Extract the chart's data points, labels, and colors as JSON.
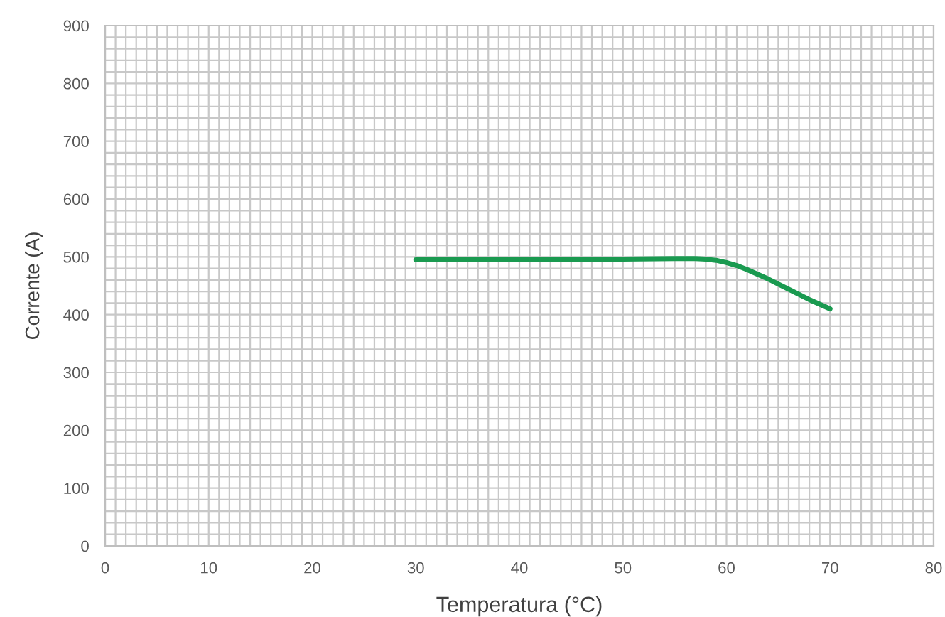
{
  "chart_data": {
    "type": "line",
    "xlabel": "Temperatura (°C)",
    "ylabel": "Corrente (A)",
    "x": [
      30,
      35,
      40,
      45,
      50,
      55,
      57,
      58,
      59,
      60,
      61,
      62,
      63,
      64,
      65,
      66,
      67,
      68,
      69,
      70
    ],
    "series": [
      {
        "color": "#1a9a50",
        "values": [
          495,
          495,
          495,
          495,
          496,
          497,
          497,
          496,
          494,
          490,
          485,
          478,
          470,
          462,
          453,
          444,
          435,
          426,
          418,
          410
        ]
      }
    ],
    "xlim": [
      0,
      80
    ],
    "ylim": [
      0,
      900
    ],
    "xticks": [
      0,
      {
        "value": 1,
        "label": null
      },
      {
        "value": 2,
        "label": null
      },
      {
        "value": 3,
        "label": null
      },
      {
        "value": 4,
        "label": null
      },
      {
        "value": 5,
        "label": null
      },
      {
        "value": 6,
        "label": null
      },
      {
        "value": 7,
        "label": null
      },
      {
        "value": 8,
        "label": null
      },
      {
        "value": 9,
        "label": null
      },
      10,
      {
        "value": 11,
        "label": null
      },
      {
        "value": 12,
        "label": null
      },
      {
        "value": 13,
        "label": null
      },
      {
        "value": 14,
        "label": null
      },
      {
        "value": 15,
        "label": null
      },
      {
        "value": 16,
        "label": null
      },
      {
        "value": 17,
        "label": null
      },
      {
        "value": 18,
        "label": null
      },
      {
        "value": 19,
        "label": null
      },
      20,
      {
        "value": 21,
        "label": null
      },
      {
        "value": 22,
        "label": null
      },
      {
        "value": 23,
        "label": null
      },
      {
        "value": 24,
        "label": null
      },
      {
        "value": 25,
        "label": null
      },
      {
        "value": 26,
        "label": null
      },
      {
        "value": 27,
        "label": null
      },
      {
        "value": 28,
        "label": null
      },
      {
        "value": 29,
        "label": null
      },
      30,
      {
        "value": 31,
        "label": null
      },
      {
        "value": 32,
        "label": null
      },
      {
        "value": 33,
        "label": null
      },
      {
        "value": 34,
        "label": null
      },
      {
        "value": 35,
        "label": null
      },
      {
        "value": 36,
        "label": null
      },
      {
        "value": 37,
        "label": null
      },
      {
        "value": 38,
        "label": null
      },
      {
        "value": 39,
        "label": null
      },
      40,
      {
        "value": 41,
        "label": null
      },
      {
        "value": 42,
        "label": null
      },
      {
        "value": 43,
        "label": null
      },
      {
        "value": 44,
        "label": null
      },
      {
        "value": 45,
        "label": null
      },
      {
        "value": 46,
        "label": null
      },
      {
        "value": 47,
        "label": null
      },
      {
        "value": 48,
        "label": null
      },
      {
        "value": 49,
        "label": null
      },
      50,
      {
        "value": 51,
        "label": null
      },
      {
        "value": 52,
        "label": null
      },
      {
        "value": 53,
        "label": null
      },
      {
        "value": 54,
        "label": null
      },
      {
        "value": 55,
        "label": null
      },
      {
        "value": 56,
        "label": null
      },
      {
        "value": 57,
        "label": null
      },
      {
        "value": 58,
        "label": null
      },
      {
        "value": 59,
        "label": null
      },
      60,
      {
        "value": 61,
        "label": null
      },
      {
        "value": 62,
        "label": null
      },
      {
        "value": 63,
        "label": null
      },
      {
        "value": 64,
        "label": null
      },
      {
        "value": 65,
        "label": null
      },
      {
        "value": 66,
        "label": null
      },
      {
        "value": 67,
        "label": null
      },
      {
        "value": 68,
        "label": null
      },
      {
        "value": 69,
        "label": null
      },
      70,
      {
        "value": 71,
        "label": null
      },
      {
        "value": 72,
        "label": null
      },
      {
        "value": 73,
        "label": null
      },
      {
        "value": 74,
        "label": null
      },
      {
        "value": 75,
        "label": null
      },
      {
        "value": 76,
        "label": null
      },
      {
        "value": 77,
        "label": null
      },
      {
        "value": 78,
        "label": null
      },
      {
        "value": 79,
        "label": null
      },
      80
    ],
    "yticks": [
      0,
      {
        "value": 20,
        "label": null
      },
      {
        "value": 40,
        "label": null
      },
      {
        "value": 60,
        "label": null
      },
      {
        "value": 80,
        "label": null
      },
      100,
      {
        "value": 120,
        "label": null
      },
      {
        "value": 140,
        "label": null
      },
      {
        "value": 160,
        "label": null
      },
      {
        "value": 180,
        "label": null
      },
      200,
      {
        "value": 220,
        "label": null
      },
      {
        "value": 240,
        "label": null
      },
      {
        "value": 260,
        "label": null
      },
      {
        "value": 280,
        "label": null
      },
      300,
      {
        "value": 320,
        "label": null
      },
      {
        "value": 340,
        "label": null
      },
      {
        "value": 360,
        "label": null
      },
      {
        "value": 380,
        "label": null
      },
      400,
      {
        "value": 420,
        "label": null
      },
      {
        "value": 440,
        "label": null
      },
      {
        "value": 460,
        "label": null
      },
      {
        "value": 480,
        "label": null
      },
      500,
      {
        "value": 520,
        "label": null
      },
      {
        "value": 540,
        "label": null
      },
      {
        "value": 560,
        "label": null
      },
      {
        "value": 580,
        "label": null
      },
      600,
      {
        "value": 620,
        "label": null
      },
      {
        "value": 640,
        "label": null
      },
      {
        "value": 660,
        "label": null
      },
      {
        "value": 680,
        "label": null
      },
      700,
      {
        "value": 720,
        "label": null
      },
      {
        "value": 740,
        "label": null
      },
      {
        "value": 760,
        "label": null
      },
      {
        "value": 780,
        "label": null
      },
      800,
      {
        "value": 820,
        "label": null
      },
      {
        "value": 840,
        "label": null
      },
      {
        "value": 860,
        "label": null
      },
      {
        "value": 880,
        "label": null
      },
      900
    ],
    "grid": true,
    "line_style": "solid",
    "marker": "none"
  }
}
